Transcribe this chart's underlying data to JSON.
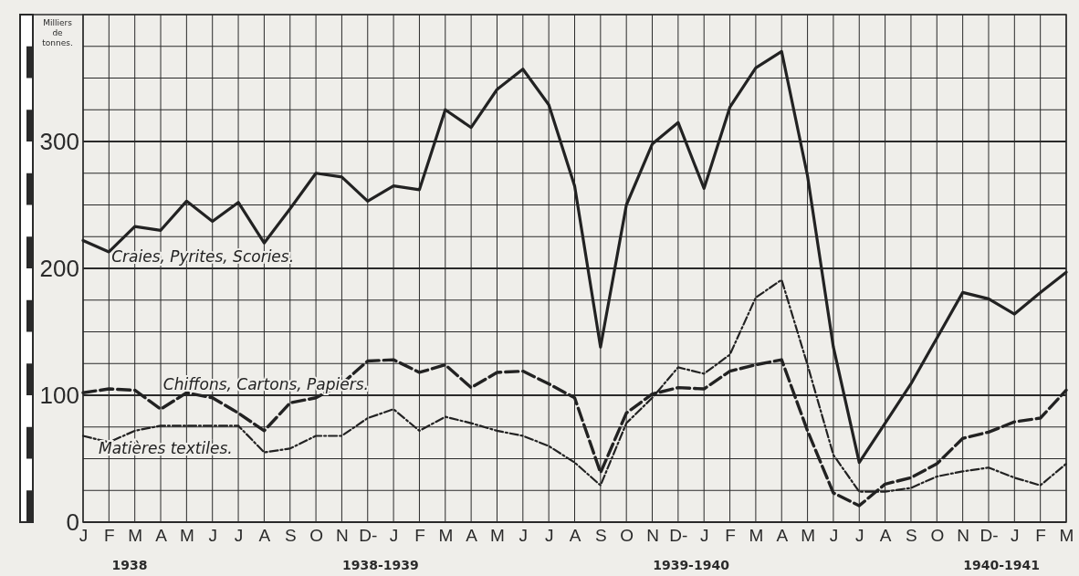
{
  "chart_data": {
    "type": "line",
    "ylabel": "Milliers de tonnes.",
    "categories": [
      "J",
      "F",
      "M",
      "A",
      "M",
      "J",
      "J",
      "A",
      "S",
      "O",
      "N",
      "D-",
      "J",
      "F",
      "M",
      "A",
      "M",
      "J",
      "J",
      "A",
      "S",
      "O",
      "N",
      "D-",
      "J",
      "F",
      "M",
      "A",
      "M",
      "J",
      "J",
      "A",
      "S",
      "O",
      "N",
      "D-",
      "J",
      "F",
      "M"
    ],
    "series": [
      {
        "name": "Craies, Pyrites, Scories.",
        "color": "#222222",
        "line_style": "solid",
        "values": [
          222,
          213,
          233,
          230,
          253,
          237,
          252,
          220,
          247,
          275,
          272,
          253,
          265,
          262,
          325,
          311,
          341,
          357,
          329,
          265,
          138,
          250,
          298,
          315,
          263,
          327,
          358,
          371,
          273,
          138,
          47,
          78,
          109,
          145,
          181,
          176,
          164,
          181,
          197
        ]
      },
      {
        "name": "Chiffons, Cartons, Papiers.",
        "color": "#222222",
        "line_style": "dashed",
        "values": [
          102,
          105,
          104,
          89,
          102,
          98,
          86,
          72,
          94,
          98,
          109,
          127,
          128,
          118,
          124,
          106,
          118,
          119,
          109,
          98,
          39,
          86,
          101,
          106,
          105,
          119,
          124,
          128,
          72,
          23,
          13,
          30,
          35,
          46,
          66,
          71,
          79,
          82,
          104
        ]
      },
      {
        "name": "Matières textiles.",
        "color": "#222222",
        "line_style": "dotted",
        "values": [
          68,
          63,
          72,
          76,
          76,
          76,
          76,
          55,
          58,
          68,
          68,
          82,
          89,
          72,
          83,
          78,
          72,
          68,
          60,
          47,
          29,
          78,
          98,
          122,
          117,
          132,
          177,
          191,
          124,
          53,
          24,
          24,
          27,
          36,
          40,
          43,
          35,
          29,
          46
        ]
      }
    ],
    "annotations": [
      "1938",
      "1938-1939",
      "1939-1940",
      "1940-1941"
    ],
    "ylim": [
      0,
      400
    ],
    "yticks": [
      0,
      {
        "value": 25,
        "label": null
      },
      {
        "value": 50,
        "label": null
      },
      {
        "value": 75,
        "label": null
      },
      100,
      {
        "value": 125,
        "label": null
      },
      {
        "value": 150,
        "label": null
      },
      {
        "value": 175,
        "label": null
      },
      200,
      {
        "value": 225,
        "label": null
      },
      {
        "value": 250,
        "label": null
      },
      {
        "value": 275,
        "label": null
      },
      300,
      {
        "value": 325,
        "label": null
      },
      {
        "value": 350,
        "label": null
      },
      {
        "value": 375,
        "label": null
      },
      {
        "value": 400,
        "label": null
      }
    ],
    "grid": true
  }
}
